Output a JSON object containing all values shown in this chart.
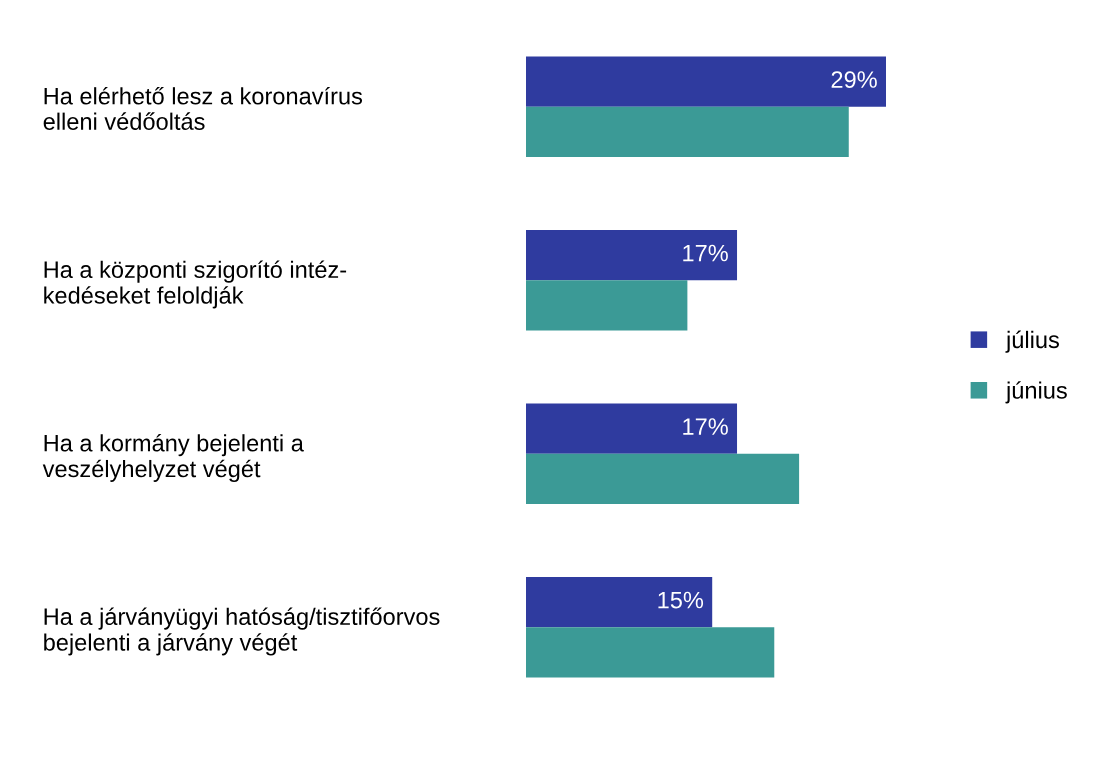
{
  "chart_data": {
    "type": "bar",
    "orientation": "horizontal",
    "categories": [
      "Ha elérhető lesz a koronavírus\nelleni védőoltás",
      "Ha a központi szigorító intéz-\nkedéseket feloldják",
      "Ha a kormány bejelenti a\nveszélyhelyzet végét",
      "Ha a járványügyi hatóság/tisztifőorvos\nbejelenti a járvány végét"
    ],
    "series": [
      {
        "name": "július",
        "color": "#2f3b9f",
        "values": [
          29,
          17,
          17,
          15
        ],
        "value_labels": [
          "29%",
          "17%",
          "17%",
          "15%"
        ]
      },
      {
        "name": "június",
        "color": "#3b9a96",
        "values": [
          26,
          13,
          22,
          20
        ]
      }
    ],
    "legend": "right",
    "grid": false
  }
}
